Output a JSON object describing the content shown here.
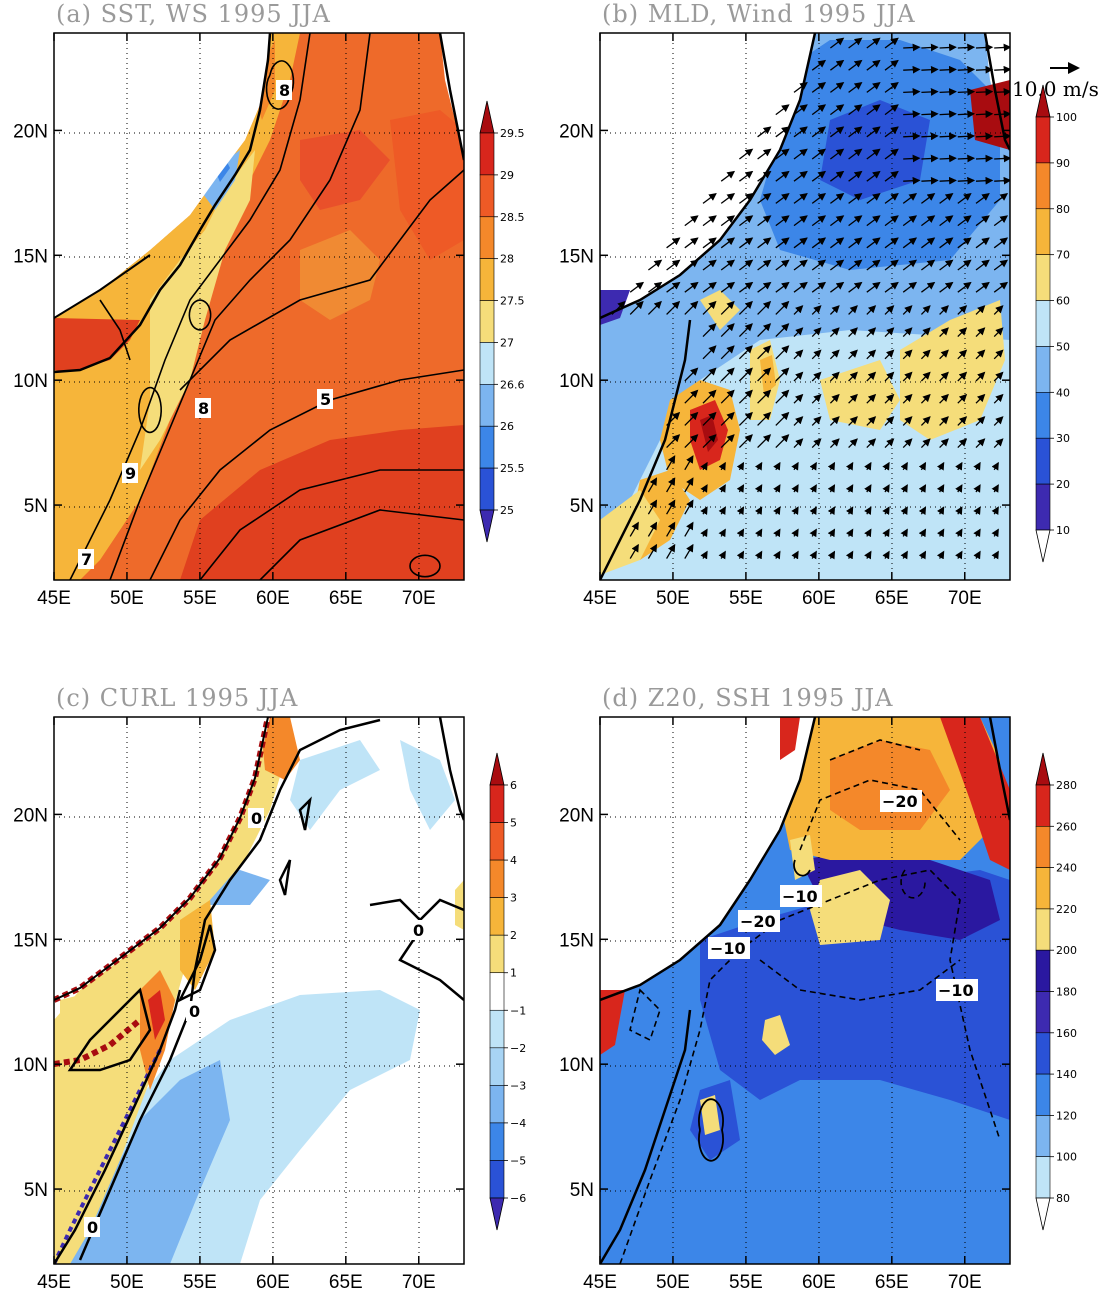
{
  "lon_ticks": [
    "45E",
    "50E",
    "55E",
    "60E",
    "65E",
    "70E"
  ],
  "lat_ticks": [
    "5N",
    "10N",
    "15N",
    "20N"
  ],
  "vector_reference": "10.0 m/s",
  "panels": [
    {
      "id": "a",
      "title": "(a) SST, WS 1995 JJA",
      "field": "SST",
      "colorbar_labels": [
        "25",
        "25.5",
        "26",
        "26.6",
        "27",
        "27.5",
        "28",
        "28.5",
        "29",
        "29.5"
      ],
      "colorbar_colors": [
        "#3d2ab0",
        "#2a52d6",
        "#3c86e8",
        "#7cb5f0",
        "#bfe4f7",
        "#f5dd7a",
        "#f6b53a",
        "#f4882a",
        "#ee5a26",
        "#d8261c",
        "#a80c10"
      ],
      "contour_labels": [
        "8",
        "8",
        "9",
        "7",
        "5"
      ]
    },
    {
      "id": "b",
      "title": "(b) MLD, Wind 1995 JJA",
      "field": "MLD",
      "colorbar_labels": [
        "10",
        "20",
        "30",
        "40",
        "50",
        "60",
        "70",
        "80",
        "90",
        "100"
      ],
      "colorbar_colors": [
        "#ffffff",
        "#3d2ab0",
        "#2a52d6",
        "#3c86e8",
        "#7cb5f0",
        "#bfe4f7",
        "#f5dd7a",
        "#f6b53a",
        "#f4882a",
        "#d8261c",
        "#a80c10"
      ],
      "contour_labels": []
    },
    {
      "id": "c",
      "title": "(c) CURL 1995 JJA",
      "field": "CURL",
      "colorbar_labels": [
        "−6",
        "−5",
        "−4",
        "−3",
        "−2",
        "−1",
        "1",
        "2",
        "3",
        "4",
        "5",
        "6"
      ],
      "colorbar_colors": [
        "#3d2ab0",
        "#2a52d6",
        "#3c86e8",
        "#7cb5f0",
        "#a8d4f4",
        "#bfe4f7",
        "#ffffff",
        "#f5dd7a",
        "#f6b53a",
        "#f4882a",
        "#ee5a26",
        "#d8261c",
        "#a80c10"
      ],
      "contour_labels": [
        "0",
        "0",
        "0",
        "0"
      ]
    },
    {
      "id": "d",
      "title": "(d) Z20, SSH 1995 JJA",
      "field": "Z20",
      "colorbar_labels": [
        "80",
        "100",
        "120",
        "140",
        "160",
        "180",
        "200",
        "220",
        "240",
        "260",
        "280"
      ],
      "colorbar_colors": [
        "#ffffff",
        "#bfe4f7",
        "#7cb5f0",
        "#3c86e8",
        "#2a52d6",
        "#3d2ab0",
        "#2a18a0",
        "#f5dd7a",
        "#f6b53a",
        "#f4882a",
        "#d8261c",
        "#a80c10"
      ],
      "contour_labels": [
        "−20",
        "−10",
        "−20",
        "−10",
        "−10"
      ]
    }
  ]
}
